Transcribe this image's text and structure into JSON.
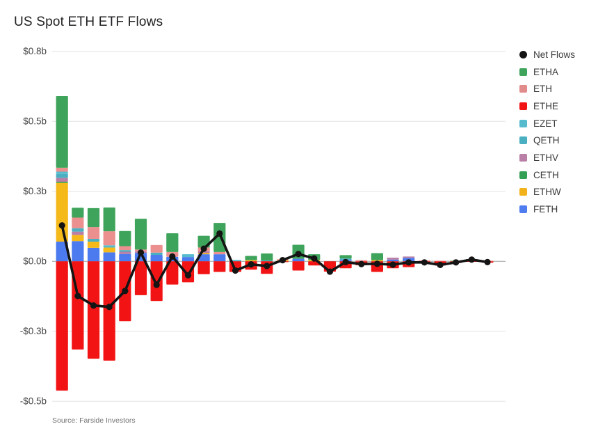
{
  "header": {
    "title": "US Spot ETH ETF Flows"
  },
  "footer": {
    "source": "Source: Farside Investors"
  },
  "chart_data": {
    "type": "stacked_bar_line",
    "title": "US Spot ETH ETF Flows",
    "source": "Source: Farside Investors",
    "grid": true,
    "legend_position": "right",
    "ylim": [
      -0.55,
      0.8
    ],
    "y_unit": "$ billions",
    "y_ticks": [
      {
        "value": 0.75,
        "label": "$0.8b"
      },
      {
        "value": 0.5,
        "label": "$0.5b"
      },
      {
        "value": 0.25,
        "label": "$0.3b"
      },
      {
        "value": 0.0,
        "label": "$0.0b"
      },
      {
        "value": -0.25,
        "label": "-$0.3b"
      },
      {
        "value": -0.5,
        "label": "-$0.5b"
      }
    ],
    "colors": {
      "net_flows": "#141414",
      "grid_line": "#e4e4e4",
      "zero_line": "#9e9e9e",
      "tick_text": "#444444"
    },
    "legend": [
      {
        "name": "Net Flows",
        "color": "#141414",
        "marker": "circle"
      },
      {
        "name": "ETHA",
        "color": "#3fa45b",
        "marker": "square"
      },
      {
        "name": "ETH",
        "color": "#e28b8b",
        "marker": "square"
      },
      {
        "name": "ETHE",
        "color": "#f01414",
        "marker": "square"
      },
      {
        "name": "EZET",
        "color": "#56bccd",
        "marker": "square"
      },
      {
        "name": "QETH",
        "color": "#4ab0c1",
        "marker": "square"
      },
      {
        "name": "ETHV",
        "color": "#b97fa6",
        "marker": "square"
      },
      {
        "name": "CETH",
        "color": "#33a054",
        "marker": "square"
      },
      {
        "name": "ETHW",
        "color": "#f2b21c",
        "marker": "square"
      },
      {
        "name": "FETH",
        "color": "#4f7df0",
        "marker": "square"
      }
    ],
    "stack_order_bottom_to_top": [
      "FETH",
      "ETHW",
      "CETH",
      "ETHV",
      "QETH",
      "EZET",
      "ETHE",
      "ETH",
      "ETHA"
    ],
    "series": [
      {
        "name": "FETH",
        "color": "#4b7bee",
        "values": [
          0.07,
          0.072,
          0.048,
          0.032,
          0.026,
          0.03,
          0.023,
          0.016,
          0.015,
          0.025,
          0.025,
          0,
          0,
          0,
          0,
          0.009,
          0,
          0,
          0.005,
          0,
          0,
          0.006,
          0.012,
          0,
          0,
          0,
          0,
          0
        ]
      },
      {
        "name": "ETHW",
        "color": "#f5b91a",
        "values": [
          0.21,
          0.022,
          0.022,
          0.017,
          0,
          0,
          0,
          0,
          0,
          0.004,
          0,
          0,
          0.004,
          0,
          0.004,
          0,
          0.005,
          0,
          0,
          0,
          0.004,
          0,
          0,
          0,
          0,
          0,
          0,
          0
        ]
      },
      {
        "name": "CETH",
        "color": "#33a054",
        "values": [
          0.004,
          0,
          0,
          0,
          0,
          0,
          0,
          0,
          0,
          0,
          0,
          0,
          0,
          0,
          0,
          0,
          0,
          0,
          0,
          0,
          0,
          0,
          0,
          0,
          0,
          0,
          0,
          0
        ]
      },
      {
        "name": "ETHV",
        "color": "#b97fa6",
        "values": [
          0.014,
          0.012,
          0,
          0,
          0.008,
          0.005,
          0,
          0,
          0,
          0.007,
          0,
          0,
          0,
          0,
          0,
          0,
          0,
          0,
          0,
          0,
          0,
          0.007,
          0.005,
          0,
          0,
          0,
          0,
          0
        ]
      },
      {
        "name": "QETH",
        "color": "#4ab0c1",
        "values": [
          0.014,
          0.012,
          0.01,
          0,
          0.006,
          0,
          0.008,
          0,
          0,
          0,
          0,
          0,
          0,
          0.003,
          0,
          0,
          0,
          0,
          0.005,
          0,
          0,
          0,
          0,
          0,
          0,
          0,
          0,
          0
        ]
      },
      {
        "name": "EZET",
        "color": "#56bccd",
        "values": [
          0.008,
          0,
          0,
          0.008,
          0,
          0,
          0,
          0,
          0.01,
          0,
          0,
          0.005,
          0,
          0,
          0,
          0,
          0,
          0,
          0,
          0,
          0,
          0,
          0,
          0,
          0,
          0,
          0,
          0
        ]
      },
      {
        "name": "ETHE",
        "color": "#f21414",
        "values": [
          -0.462,
          -0.315,
          -0.348,
          -0.355,
          -0.214,
          -0.121,
          -0.142,
          -0.083,
          -0.075,
          -0.046,
          -0.038,
          -0.038,
          -0.03,
          -0.045,
          -0.003,
          -0.033,
          -0.015,
          -0.037,
          -0.025,
          -0.014,
          -0.038,
          -0.025,
          -0.021,
          -0.007,
          -0.015,
          -0.006,
          -0.002,
          -0.005
        ]
      },
      {
        "name": "ETH",
        "color": "#ec8f8f",
        "values": [
          0.014,
          0.038,
          0.042,
          0.05,
          0.014,
          0.007,
          0.027,
          0.017,
          0,
          0.013,
          0.008,
          0,
          0,
          0,
          0.003,
          0,
          0,
          0,
          0,
          0.004,
          0,
          0,
          0,
          0.003,
          0.002,
          0,
          0,
          0.002
        ]
      },
      {
        "name": "ETHA",
        "color": "#3fa45b",
        "values": [
          0.256,
          0.035,
          0.068,
          0.085,
          0.054,
          0.11,
          0,
          0.067,
          0,
          0.042,
          0.104,
          0,
          0.015,
          0.025,
          0,
          0.05,
          0.02,
          0,
          0.012,
          0,
          0.025,
          0,
          0,
          0,
          0,
          0.002,
          0.008,
          0
        ]
      }
    ],
    "net_flows": [
      0.128,
      -0.124,
      -0.158,
      -0.163,
      -0.106,
      0.031,
      -0.084,
      0.017,
      -0.05,
      0.045,
      0.099,
      -0.033,
      -0.011,
      -0.017,
      0.004,
      0.026,
      0.01,
      -0.037,
      -0.003,
      -0.01,
      -0.009,
      -0.012,
      -0.004,
      -0.004,
      -0.013,
      -0.004,
      0.006,
      -0.003
    ]
  }
}
